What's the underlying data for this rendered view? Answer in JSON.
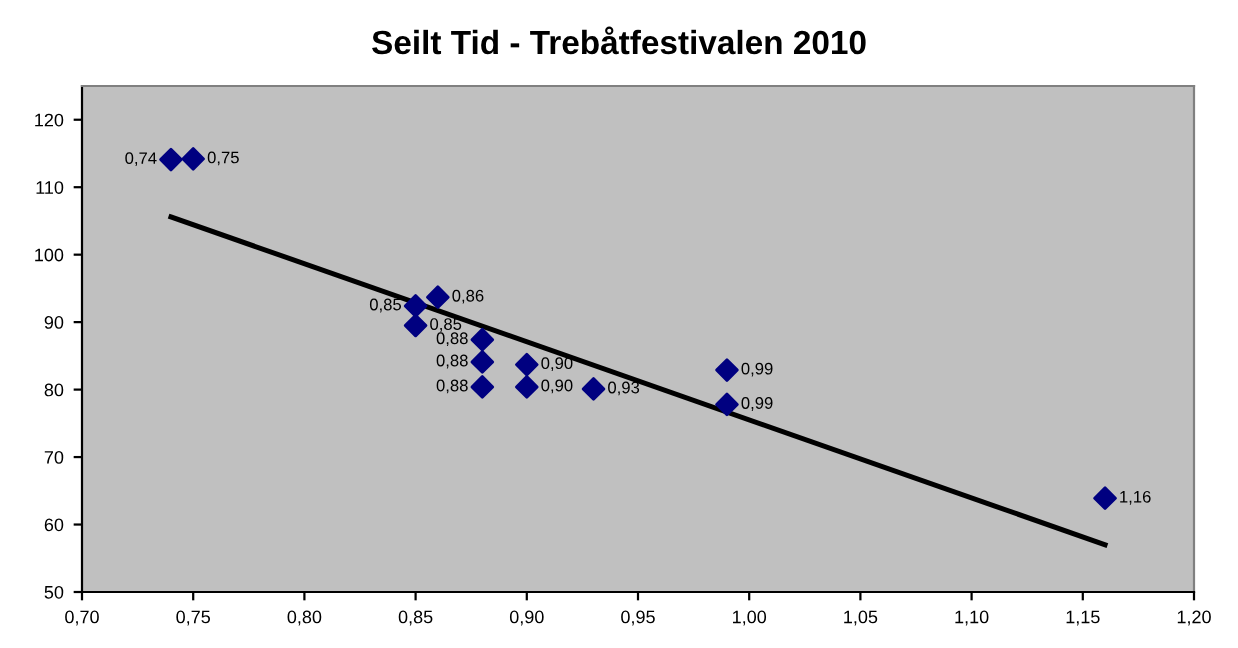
{
  "chart_data": {
    "type": "scatter",
    "title": "Seilt Tid - Trebåtfestivalen 2010",
    "xlim": [
      0.7,
      1.2
    ],
    "xticks": [
      {
        "value": 0.7,
        "label": "0,70"
      },
      {
        "value": 0.75,
        "label": "0,75"
      },
      {
        "value": 0.8,
        "label": "0,80"
      },
      {
        "value": 0.85,
        "label": "0,85"
      },
      {
        "value": 0.9,
        "label": "0,90"
      },
      {
        "value": 0.95,
        "label": "0,95"
      },
      {
        "value": 1.0,
        "label": "1,00"
      },
      {
        "value": 1.05,
        "label": "1,05"
      },
      {
        "value": 1.1,
        "label": "1,10"
      },
      {
        "value": 1.15,
        "label": "1,15"
      },
      {
        "value": 1.2,
        "label": "1,20"
      }
    ],
    "ylim": [
      50,
      125
    ],
    "yticks": [
      50,
      60,
      70,
      80,
      90,
      100,
      110,
      120
    ],
    "grid": false,
    "series": [
      {
        "color": "#000080",
        "marker": "diamond",
        "x": [
          0.74,
          0.75,
          0.85,
          0.85,
          0.86,
          0.88,
          0.88,
          0.88,
          0.9,
          0.9,
          0.93,
          0.99,
          0.99,
          1.16
        ],
        "values": [
          114.1,
          114.2,
          92.4,
          89.5,
          93.7,
          87.4,
          84.1,
          80.4,
          83.7,
          80.4,
          80.1,
          82.9,
          77.8,
          63.9
        ]
      },
      {
        "type": "line",
        "color": "#000000",
        "marker": "none",
        "line_style": "solid",
        "x": [
          0.74,
          1.16
        ],
        "values": [
          105.6,
          57.0
        ]
      }
    ],
    "annotations": [
      {
        "text": "0,74",
        "x": 0.74,
        "y": 114.1
      },
      {
        "text": "0,75",
        "x": 0.75,
        "y": 114.2
      },
      {
        "text": "0,85",
        "x": 0.85,
        "y": 92.4
      },
      {
        "text": "0,85",
        "x": 0.85,
        "y": 89.5
      },
      {
        "text": "0,86",
        "x": 0.86,
        "y": 93.7
      },
      {
        "text": "0,88",
        "x": 0.88,
        "y": 87.4
      },
      {
        "text": "0,88",
        "x": 0.88,
        "y": 84.1
      },
      {
        "text": "0,88",
        "x": 0.88,
        "y": 80.4
      },
      {
        "text": "0,90",
        "x": 0.9,
        "y": 83.7
      },
      {
        "text": "0,90",
        "x": 0.9,
        "y": 80.4
      },
      {
        "text": "0,93",
        "x": 0.93,
        "y": 80.1
      },
      {
        "text": "0,99",
        "x": 0.99,
        "y": 82.9
      },
      {
        "text": "0,99",
        "x": 0.99,
        "y": 77.8
      },
      {
        "text": "1,16",
        "x": 1.16,
        "y": 63.9
      }
    ]
  }
}
